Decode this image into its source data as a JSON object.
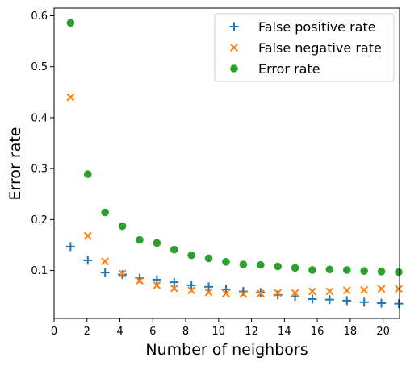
{
  "chart_data": {
    "type": "scatter",
    "xlabel": "Number of neighbors",
    "ylabel": "Error rate",
    "xlim": [
      0,
      21
    ],
    "ylim": [
      0.006,
      0.615
    ],
    "xticks": [
      0,
      2,
      4,
      6,
      8,
      10,
      12,
      14,
      16,
      18,
      20
    ],
    "yticks": [
      0.1,
      0.2,
      0.3,
      0.4,
      0.5,
      0.6
    ],
    "grid": false,
    "legend_position": "top-right",
    "x": [
      1,
      2.05,
      3.1,
      4.15,
      5.2,
      6.25,
      7.3,
      8.35,
      9.4,
      10.45,
      11.5,
      12.55,
      13.6,
      14.65,
      15.7,
      16.75,
      17.8,
      18.85,
      19.9,
      20.95
    ],
    "series": [
      {
        "name": "False positive rate",
        "marker": "plus",
        "color": "#1f77b4",
        "values": [
          0.147,
          0.12,
          0.096,
          0.092,
          0.085,
          0.082,
          0.077,
          0.071,
          0.068,
          0.063,
          0.059,
          0.057,
          0.052,
          0.049,
          0.044,
          0.043,
          0.041,
          0.038,
          0.036,
          0.035
        ]
      },
      {
        "name": "False negative rate",
        "marker": "x",
        "color": "#ff7f0e",
        "values": [
          0.44,
          0.168,
          0.118,
          0.094,
          0.08,
          0.071,
          0.065,
          0.061,
          0.057,
          0.055,
          0.054,
          0.055,
          0.056,
          0.056,
          0.059,
          0.059,
          0.061,
          0.062,
          0.064,
          0.064
        ]
      },
      {
        "name": "Error rate",
        "marker": "circle",
        "color": "#2ca02c",
        "values": [
          0.586,
          0.289,
          0.214,
          0.187,
          0.16,
          0.154,
          0.141,
          0.13,
          0.124,
          0.117,
          0.112,
          0.111,
          0.108,
          0.105,
          0.101,
          0.102,
          0.101,
          0.099,
          0.098,
          0.097
        ]
      }
    ]
  }
}
